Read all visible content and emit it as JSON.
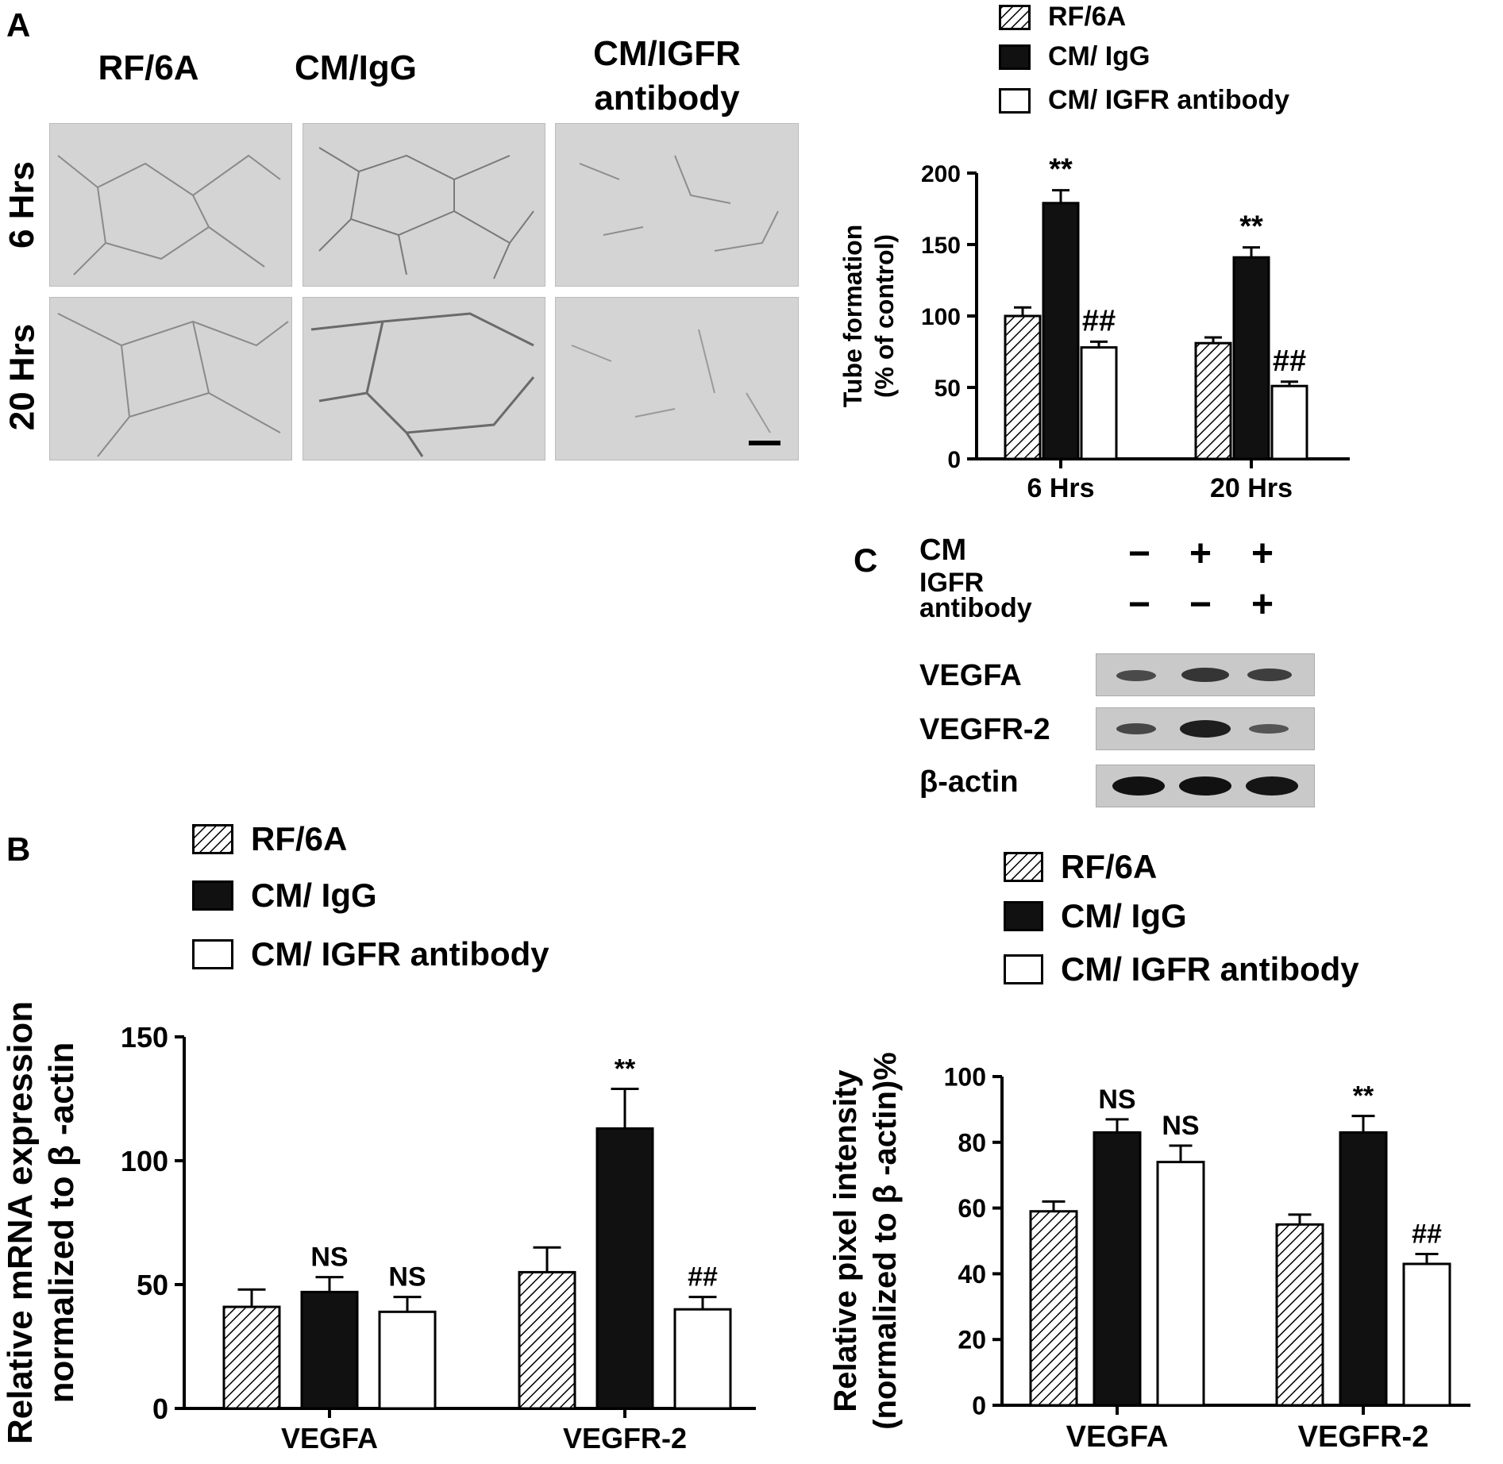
{
  "panel_a": {
    "letter": "A",
    "column_headers": [
      "RF/6A",
      "CM/IgG",
      "CM/IGFR antibody"
    ],
    "row_headers": [
      "6 Hrs",
      "20 Hrs"
    ],
    "legend": [
      "RF/6A",
      "CM/ IgG",
      "CM/ IGFR antibody"
    ]
  },
  "panel_b": {
    "letter": "B",
    "legend": [
      "RF/6A",
      "CM/ IgG",
      "CM/ IGFR antibody"
    ]
  },
  "panel_c": {
    "letter": "C",
    "row_cm": "CM",
    "row_igfr_line1": "IGFR",
    "row_igfr_line2": "antibody",
    "cm_signs": [
      "−",
      "+",
      "+"
    ],
    "igfr_signs": [
      "−",
      "−",
      "+"
    ],
    "blot_labels": [
      "VEGFA",
      "VEGFR-2",
      "β-actin"
    ],
    "legend": [
      "RF/6A",
      "CM/ IgG",
      "CM/ IGFR antibody"
    ]
  },
  "chart_data": [
    {
      "id": "tube-formation",
      "type": "bar",
      "categories": [
        "6 Hrs",
        "20 Hrs"
      ],
      "series": [
        {
          "name": "RF/6A",
          "values": [
            100,
            81
          ],
          "errors": [
            6,
            4
          ],
          "fill": "hatch"
        },
        {
          "name": "CM/ IgG",
          "values": [
            179,
            141
          ],
          "errors": [
            9,
            7
          ],
          "fill": "#111111"
        },
        {
          "name": "CM/ IGFR antibody",
          "values": [
            78,
            51
          ],
          "errors": [
            4,
            3
          ],
          "fill": "#ffffff"
        }
      ],
      "annotations": [
        [
          "",
          "**",
          "##"
        ],
        [
          "",
          "**",
          "##"
        ]
      ],
      "ylabel_line1": "Tube formation",
      "ylabel_line2": "(% of control)",
      "ylim": [
        0,
        200
      ],
      "yticks": [
        0,
        50,
        100,
        150,
        200
      ]
    },
    {
      "id": "mrna-expression",
      "type": "bar",
      "categories": [
        "VEGFA",
        "VEGFR-2"
      ],
      "series": [
        {
          "name": "RF/6A",
          "values": [
            41,
            55
          ],
          "errors": [
            7,
            10
          ],
          "fill": "hatch"
        },
        {
          "name": "CM/ IgG",
          "values": [
            47,
            113
          ],
          "errors": [
            6,
            16
          ],
          "fill": "#111111"
        },
        {
          "name": "CM/ IGFR antibody",
          "values": [
            39,
            40
          ],
          "errors": [
            6,
            5
          ],
          "fill": "#ffffff"
        }
      ],
      "annotations": [
        [
          "",
          "NS",
          "NS"
        ],
        [
          "",
          "**",
          "##"
        ]
      ],
      "ylabel_line1": "Relative mRNA expression",
      "ylabel_line2": "normalized to β -actin",
      "ylim": [
        0,
        150
      ],
      "yticks": [
        0,
        50,
        100,
        150
      ]
    },
    {
      "id": "pixel-intensity",
      "type": "bar",
      "categories": [
        "VEGFA",
        "VEGFR-2"
      ],
      "series": [
        {
          "name": "RF/6A",
          "values": [
            59,
            55
          ],
          "errors": [
            3,
            3
          ],
          "fill": "hatch"
        },
        {
          "name": "CM/ IgG",
          "values": [
            83,
            83
          ],
          "errors": [
            4,
            5
          ],
          "fill": "#111111"
        },
        {
          "name": "CM/ IGFR antibody",
          "values": [
            74,
            43
          ],
          "errors": [
            5,
            3
          ],
          "fill": "#ffffff"
        }
      ],
      "annotations": [
        [
          "",
          "NS",
          "NS"
        ],
        [
          "",
          "**",
          "##"
        ]
      ],
      "ylabel_line1": "Relative pixel  intensity",
      "ylabel_line2": "(normalized to β -actin)%",
      "ylim": [
        0,
        100
      ],
      "yticks": [
        0,
        20,
        40,
        60,
        80,
        100
      ]
    }
  ]
}
